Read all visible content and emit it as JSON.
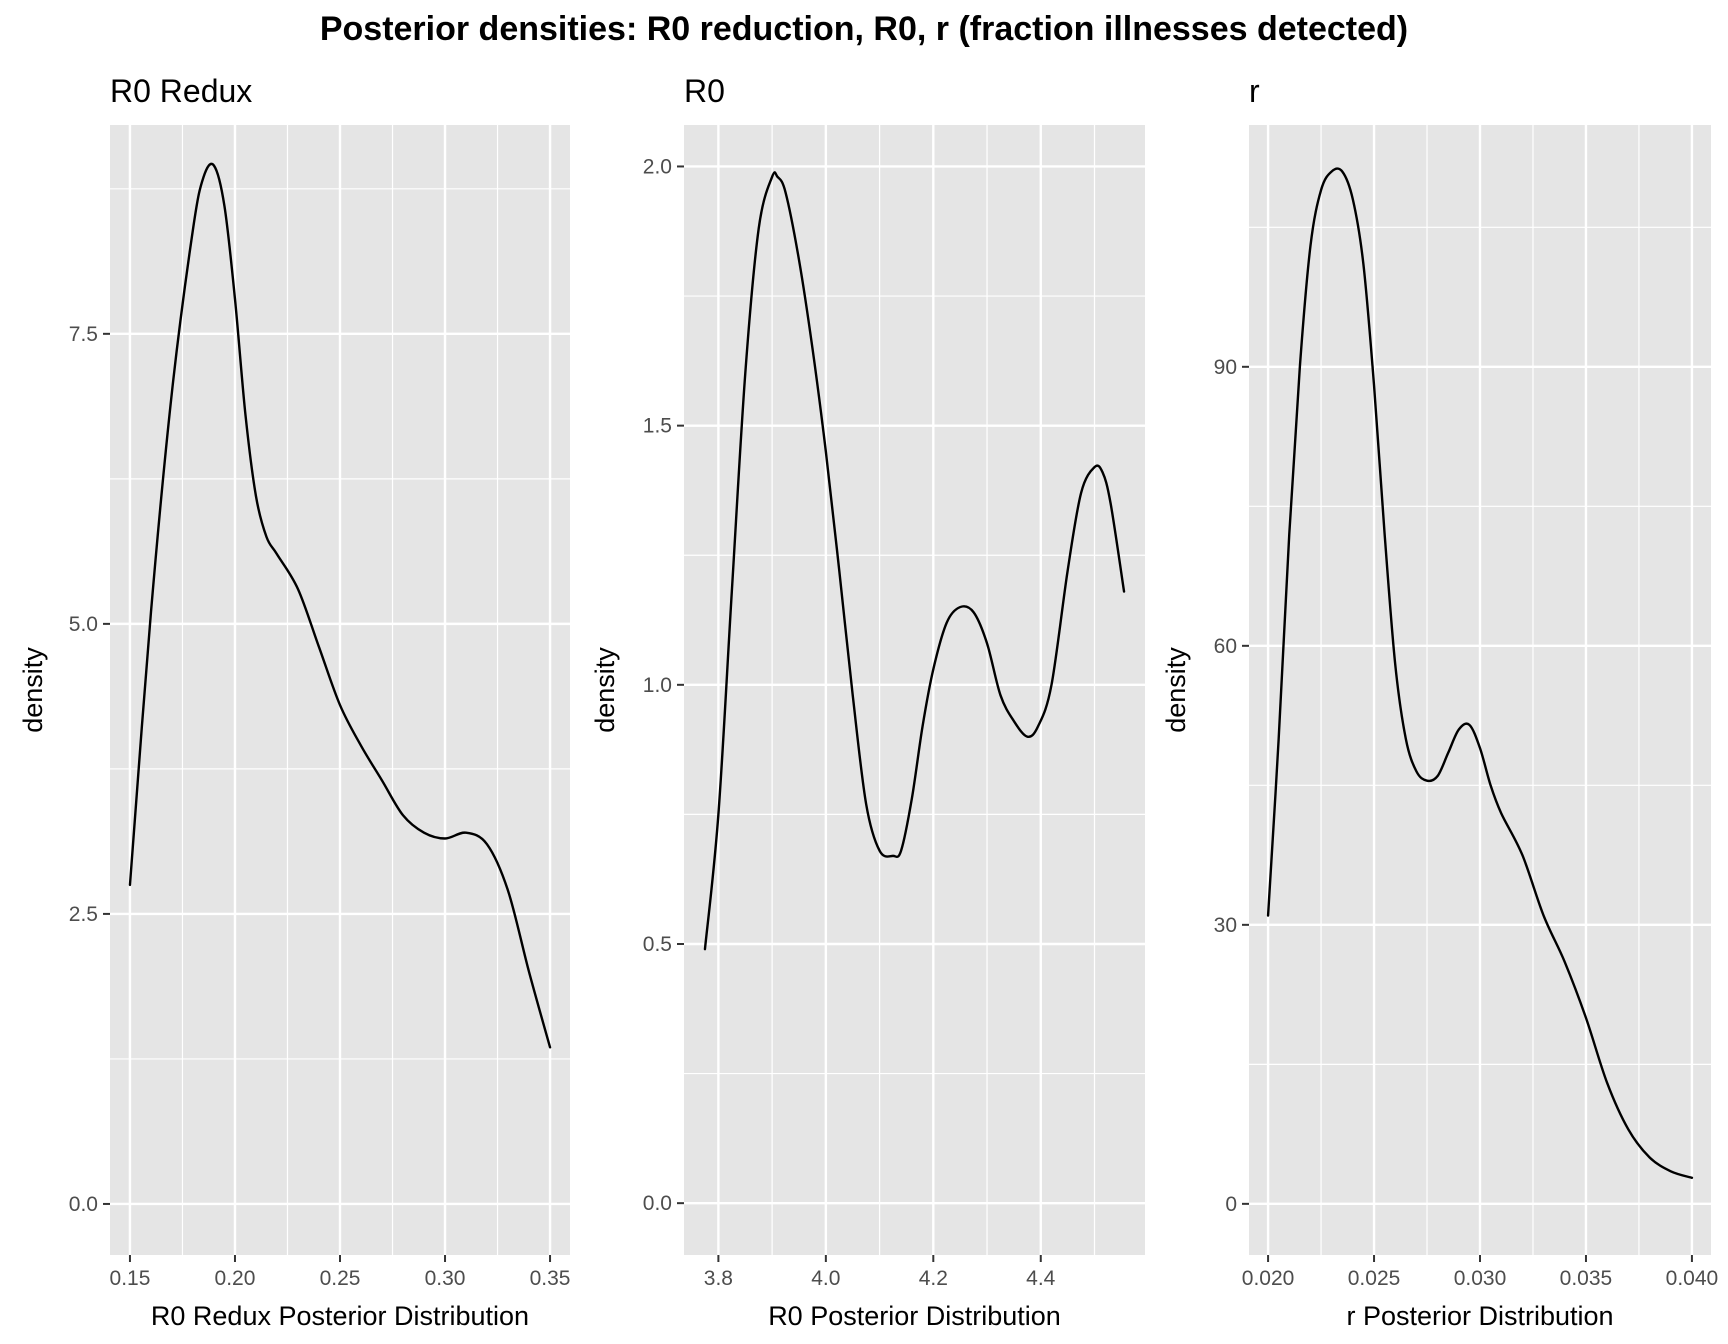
{
  "figure": {
    "title": "Posterior densities: R0 reduction, R0, r (fraction illnesses detected)",
    "panel_background": "#e5e5e5",
    "grid_color": "#ffffff",
    "line_color": "#000000"
  },
  "chart_data": [
    {
      "type": "line",
      "panel_title": "R0 Redux",
      "xlabel": "R0 Redux Posterior Distribution",
      "ylabel": "density",
      "xlim": [
        0.1405,
        0.3595
      ],
      "ylim": [
        -0.44,
        9.3
      ],
      "x_ticks": [
        0.15,
        0.2,
        0.25,
        0.3,
        0.35
      ],
      "x_tick_labels": [
        "0.15",
        "0.20",
        "0.25",
        "0.30",
        "0.35"
      ],
      "y_ticks": [
        0,
        2.5,
        5,
        7.5
      ],
      "y_tick_labels": [
        "0.0",
        "2.5",
        "5.0",
        "7.5"
      ],
      "grid": true,
      "series": [
        {
          "x": [
            0.15,
            0.16,
            0.17,
            0.18,
            0.185,
            0.19,
            0.195,
            0.2,
            0.205,
            0.21,
            0.215,
            0.22,
            0.23,
            0.24,
            0.25,
            0.26,
            0.27,
            0.28,
            0.29,
            0.3,
            0.31,
            0.32,
            0.33,
            0.34,
            0.35
          ],
          "y": [
            2.75,
            5.1,
            7.0,
            8.4,
            8.85,
            8.95,
            8.6,
            7.8,
            6.8,
            6.1,
            5.75,
            5.6,
            5.3,
            4.8,
            4.3,
            3.95,
            3.65,
            3.35,
            3.2,
            3.15,
            3.2,
            3.1,
            2.7,
            2.0,
            1.35
          ]
        }
      ]
    },
    {
      "type": "line",
      "panel_title": "R0",
      "xlabel": "R0 Posterior Distribution",
      "ylabel": "density",
      "xlim": [
        3.736,
        4.594
      ],
      "ylim": [
        -0.1,
        2.08
      ],
      "x_ticks": [
        3.8,
        4.0,
        4.2,
        4.4
      ],
      "x_tick_labels": [
        "3.8",
        "4.0",
        "4.2",
        "4.4"
      ],
      "y_ticks": [
        0,
        0.5,
        1,
        1.5,
        2
      ],
      "y_tick_labels": [
        "0.0",
        "0.5",
        "1.0",
        "1.5",
        "2.0"
      ],
      "grid": true,
      "series": [
        {
          "x": [
            3.775,
            3.8,
            3.825,
            3.85,
            3.875,
            3.9,
            3.91,
            3.925,
            3.95,
            3.975,
            4.0,
            4.025,
            4.05,
            4.075,
            4.1,
            4.125,
            4.14,
            4.16,
            4.18,
            4.2,
            4.225,
            4.25,
            4.275,
            4.3,
            4.325,
            4.35,
            4.375,
            4.395,
            4.42,
            4.45,
            4.475,
            4.5,
            4.515,
            4.53,
            4.555
          ],
          "y": [
            0.49,
            0.75,
            1.18,
            1.6,
            1.88,
            1.98,
            1.98,
            1.95,
            1.82,
            1.65,
            1.45,
            1.22,
            0.98,
            0.77,
            0.68,
            0.67,
            0.68,
            0.78,
            0.92,
            1.03,
            1.12,
            1.15,
            1.14,
            1.08,
            0.98,
            0.93,
            0.9,
            0.92,
            1.0,
            1.22,
            1.37,
            1.42,
            1.41,
            1.35,
            1.18
          ]
        }
      ]
    },
    {
      "type": "line",
      "panel_title": "r",
      "xlabel": "r Posterior Distribution",
      "ylabel": "density",
      "xlim": [
        0.0191,
        0.0409
      ],
      "ylim": [
        -5.5,
        116
      ],
      "x_ticks": [
        0.02,
        0.025,
        0.03,
        0.035,
        0.04
      ],
      "x_tick_labels": [
        "0.020",
        "0.025",
        "0.030",
        "0.035",
        "0.040"
      ],
      "y_ticks": [
        0,
        30,
        60,
        90
      ],
      "y_tick_labels": [
        "0",
        "30",
        "60",
        "90"
      ],
      "grid": true,
      "series": [
        {
          "x": [
            0.02,
            0.0205,
            0.021,
            0.0215,
            0.022,
            0.0225,
            0.023,
            0.0235,
            0.024,
            0.0245,
            0.025,
            0.0255,
            0.026,
            0.0265,
            0.027,
            0.0275,
            0.028,
            0.0285,
            0.029,
            0.0295,
            0.03,
            0.0305,
            0.031,
            0.032,
            0.033,
            0.034,
            0.035,
            0.036,
            0.037,
            0.038,
            0.039,
            0.04
          ],
          "y": [
            31,
            50,
            72,
            90,
            103,
            109,
            111,
            111,
            108,
            101,
            88,
            72,
            58,
            50,
            46.5,
            45.5,
            46,
            48.5,
            51,
            51.5,
            49,
            45,
            42,
            37.5,
            31,
            26,
            20,
            13,
            8,
            5,
            3.5,
            2.8
          ]
        }
      ]
    }
  ]
}
